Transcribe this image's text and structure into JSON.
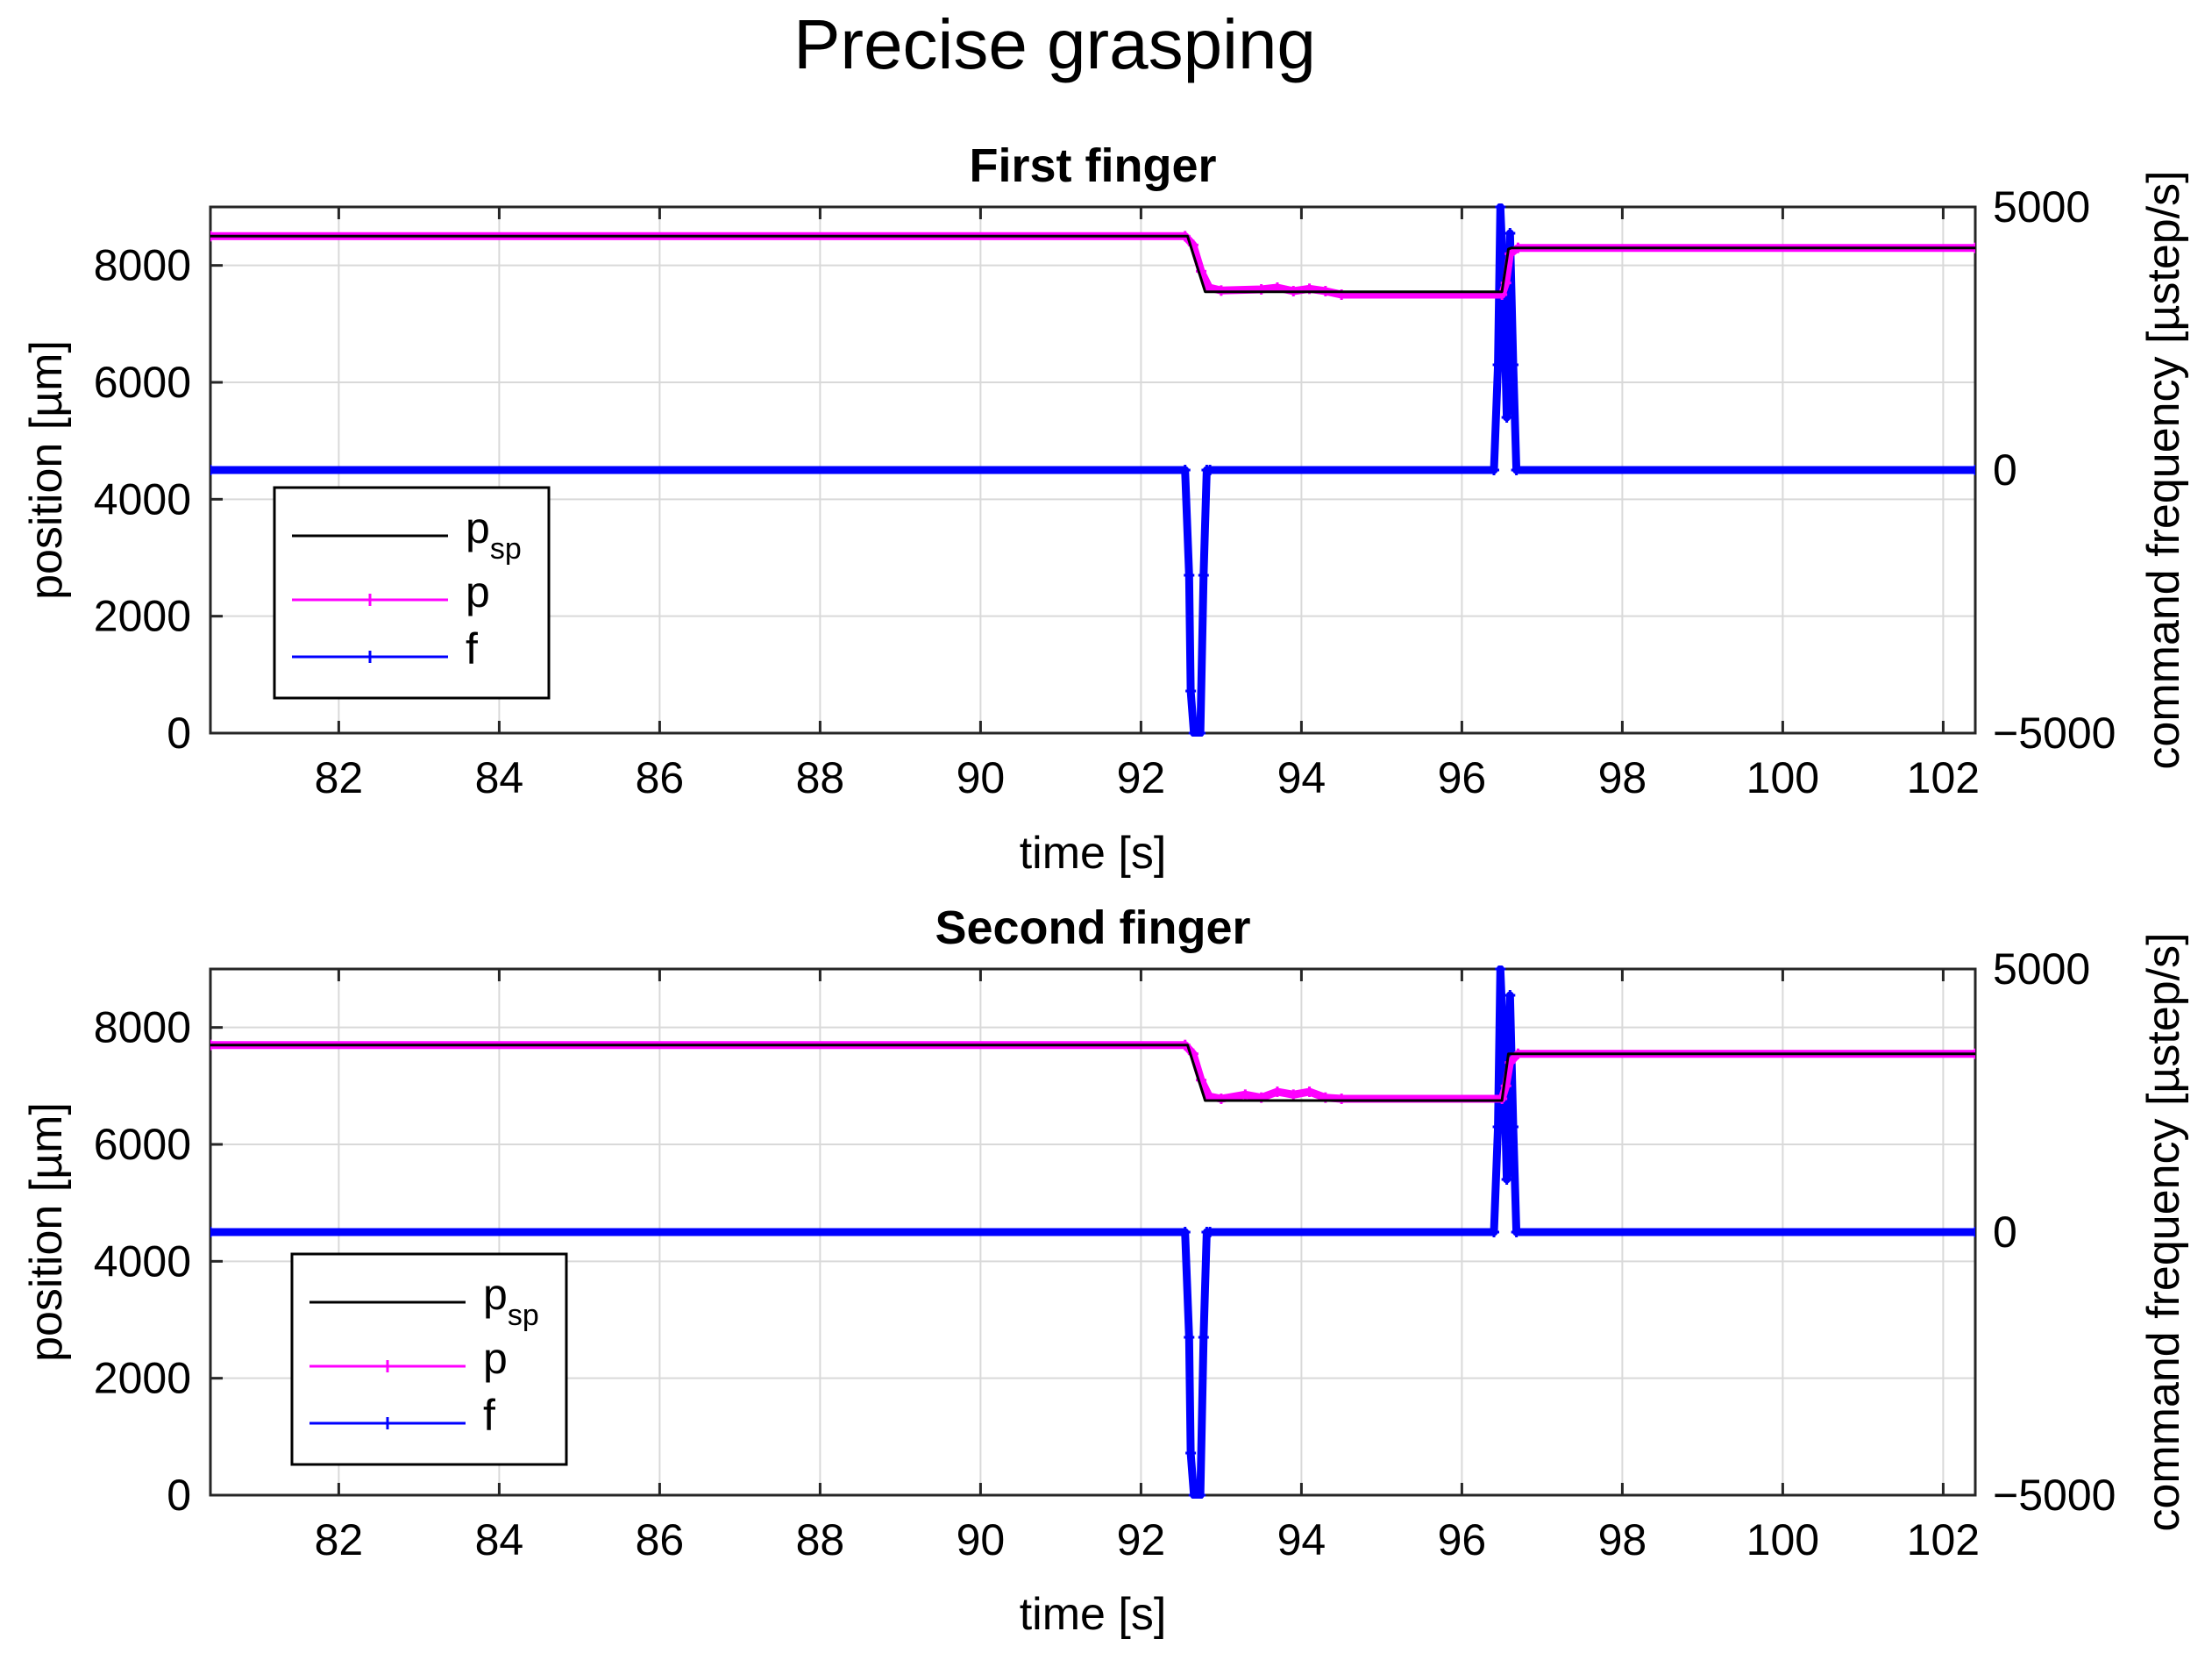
{
  "figure_title": "Precise grasping",
  "colors": {
    "psp": "#000000",
    "p": "#ff00ff",
    "f": "#0000ff",
    "grid": "#d9d9d9",
    "axis": "#262626"
  },
  "legend": {
    "psp_main": "p",
    "psp_sub": "sp",
    "p": "p",
    "f": "f"
  },
  "chart_data": [
    {
      "type": "line",
      "title": "First finger",
      "xlabel": "time [s]",
      "ylabel_left": "position [µm]",
      "ylabel_right": "command frequency [µstep/s]",
      "xlim": [
        80.4,
        102.4
      ],
      "ylim_left": [
        0,
        9000
      ],
      "ylim_right": [
        -5000,
        5000
      ],
      "xticks": [
        82,
        84,
        86,
        88,
        90,
        92,
        94,
        96,
        98,
        100,
        102
      ],
      "xtick_labels": [
        "82",
        "84",
        "86",
        "88",
        "90",
        "92",
        "94",
        "96",
        "98",
        "100",
        "102"
      ],
      "yticks_left": [
        0,
        2000,
        4000,
        6000,
        8000
      ],
      "ytick_labels_left": [
        "0",
        "2000",
        "4000",
        "6000",
        "8000"
      ],
      "yticks_right": [
        -5000,
        0,
        5000
      ],
      "ytick_labels_right": [
        "−5000",
        "0",
        "5000"
      ],
      "series": [
        {
          "name": "psp",
          "axis": "left",
          "x": [
            80.4,
            92.58,
            92.8,
            96.5,
            96.58,
            96.62,
            102.4
          ],
          "y": [
            8500,
            8500,
            7550,
            7550,
            8280,
            8300,
            8300
          ]
        },
        {
          "name": "p",
          "axis": "left",
          "x": [
            80.4,
            92.55,
            92.65,
            92.75,
            92.85,
            93.0,
            93.5,
            93.7,
            93.9,
            94.1,
            94.3,
            94.5,
            96.5,
            96.55,
            96.6,
            96.7,
            102.4
          ],
          "y": [
            8500,
            8500,
            8350,
            7900,
            7620,
            7570,
            7590,
            7620,
            7560,
            7600,
            7560,
            7500,
            7500,
            7700,
            8200,
            8300,
            8300
          ]
        },
        {
          "name": "f",
          "axis": "right",
          "x": [
            80.4,
            92.55,
            92.6,
            92.62,
            92.66,
            92.7,
            92.74,
            92.78,
            92.82,
            92.86,
            96.4,
            96.45,
            96.48,
            96.52,
            96.56,
            96.6,
            96.64,
            96.68,
            102.4
          ],
          "y": [
            0,
            0,
            -2000,
            -4200,
            -5000,
            -5000,
            -5000,
            -2000,
            0,
            0,
            0,
            2000,
            5000,
            3500,
            1000,
            4500,
            2000,
            0,
            0
          ]
        }
      ]
    },
    {
      "type": "line",
      "title": "Second finger",
      "xlabel": "time [s]",
      "ylabel_left": "position [µm]",
      "ylabel_right": "command frequency [µstep/s]",
      "xlim": [
        80.4,
        102.4
      ],
      "ylim_left": [
        0,
        9000
      ],
      "ylim_right": [
        -5000,
        5000
      ],
      "xticks": [
        82,
        84,
        86,
        88,
        90,
        92,
        94,
        96,
        98,
        100,
        102
      ],
      "xtick_labels": [
        "82",
        "84",
        "86",
        "88",
        "90",
        "92",
        "94",
        "96",
        "98",
        "100",
        "102"
      ],
      "yticks_left": [
        0,
        2000,
        4000,
        6000,
        8000
      ],
      "ytick_labels_left": [
        "0",
        "2000",
        "4000",
        "6000",
        "8000"
      ],
      "yticks_right": [
        -5000,
        0,
        5000
      ],
      "ytick_labels_right": [
        "−5000",
        "0",
        "5000"
      ],
      "series": [
        {
          "name": "psp",
          "axis": "left",
          "x": [
            80.4,
            92.58,
            92.8,
            96.5,
            96.58,
            96.62,
            102.4
          ],
          "y": [
            7700,
            7700,
            6750,
            6750,
            7550,
            7550,
            7550
          ]
        },
        {
          "name": "p",
          "axis": "left",
          "x": [
            80.4,
            92.55,
            92.65,
            92.75,
            92.85,
            93.0,
            93.3,
            93.5,
            93.7,
            93.9,
            94.1,
            94.3,
            94.5,
            96.5,
            96.55,
            96.6,
            96.7,
            102.4
          ],
          "y": [
            7700,
            7700,
            7550,
            7100,
            6820,
            6780,
            6850,
            6800,
            6900,
            6850,
            6900,
            6800,
            6780,
            6780,
            7000,
            7400,
            7550,
            7550
          ]
        },
        {
          "name": "f",
          "axis": "right",
          "x": [
            80.4,
            92.55,
            92.6,
            92.62,
            92.66,
            92.7,
            92.74,
            92.78,
            92.82,
            92.86,
            96.4,
            96.45,
            96.48,
            96.52,
            96.56,
            96.6,
            96.64,
            96.68,
            102.4
          ],
          "y": [
            0,
            0,
            -2000,
            -4200,
            -5000,
            -5000,
            -5000,
            -2000,
            0,
            0,
            0,
            2000,
            5000,
            3500,
            1000,
            4500,
            2000,
            0,
            0
          ]
        }
      ]
    }
  ]
}
